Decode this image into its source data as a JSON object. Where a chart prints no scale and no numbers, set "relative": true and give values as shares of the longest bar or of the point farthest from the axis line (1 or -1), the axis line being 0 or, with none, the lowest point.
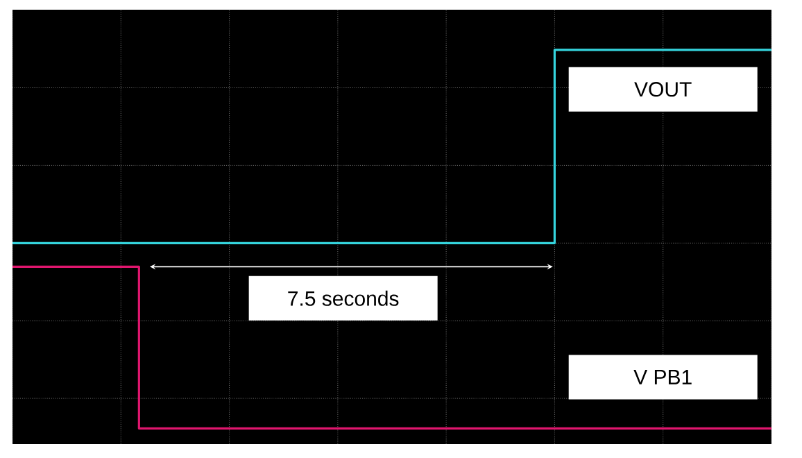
{
  "chart_data": {
    "type": "step",
    "relative": true,
    "grid": true,
    "legend": false,
    "categories": [
      null,
      null,
      null,
      null,
      null,
      null,
      null,
      null,
      null,
      null,
      null,
      null,
      null,
      null,
      null,
      null,
      null,
      null,
      null,
      null,
      null,
      null,
      null,
      null,
      null,
      null,
      null,
      null,
      null,
      null,
      null,
      null,
      null,
      null,
      null,
      null,
      null,
      null,
      null,
      null,
      null,
      null,
      null
    ],
    "series": [
      {
        "name": "VOUT",
        "color": "#35d5de",
        "values": [
          0.51,
          0.51,
          0.51,
          0.51,
          0.51,
          0.51,
          0.51,
          0.51,
          0.51,
          0.51,
          0.51,
          0.51,
          0.51,
          0.51,
          0.51,
          0.51,
          0.51,
          0.51,
          0.51,
          0.51,
          0.51,
          0.51,
          0.51,
          0.51,
          0.51,
          0.51,
          0.51,
          0.51,
          0.51,
          0.51,
          1,
          1,
          1,
          1,
          1,
          1,
          1,
          1,
          1,
          1,
          1,
          1,
          1
        ]
      },
      {
        "name": "V PB1",
        "color": "#e0166e",
        "values": [
          0.45,
          0.45,
          0.45,
          0.45,
          0.45,
          0.45,
          0.45,
          0.04,
          0.04,
          0.04,
          0.04,
          0.04,
          0.04,
          0.04,
          0.04,
          0.04,
          0.04,
          0.04,
          0.04,
          0.04,
          0.04,
          0.04,
          0.04,
          0.04,
          0.04,
          0.04,
          0.04,
          0.04,
          0.04,
          0.04,
          0.04,
          0.04,
          0.04,
          0.04,
          0.04,
          0.04,
          0.04,
          0.04,
          0.04,
          0.04,
          0.04,
          0.04,
          0.04
        ]
      }
    ],
    "annotations": [
      "7.5 seconds"
    ]
  }
}
